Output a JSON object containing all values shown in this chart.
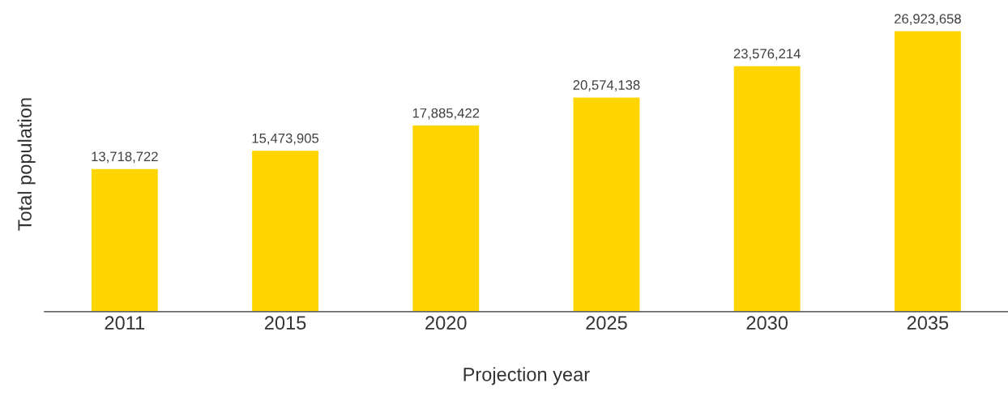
{
  "chart_data": {
    "type": "bar",
    "xlabel": "Projection year",
    "ylabel": "Total population",
    "categories": [
      "2011",
      "2015",
      "2020",
      "2025",
      "2030",
      "2035"
    ],
    "values": [
      13718722,
      15473905,
      17885422,
      20574138,
      23576214,
      26923658
    ],
    "color": "#ffd500",
    "value_labels": [
      "13,718,722",
      "15,473,905",
      "17,885,422",
      "20,574,138",
      "23,576,214",
      "26,923,658"
    ],
    "grid": false,
    "legend": false,
    "tick_labels": "x"
  }
}
